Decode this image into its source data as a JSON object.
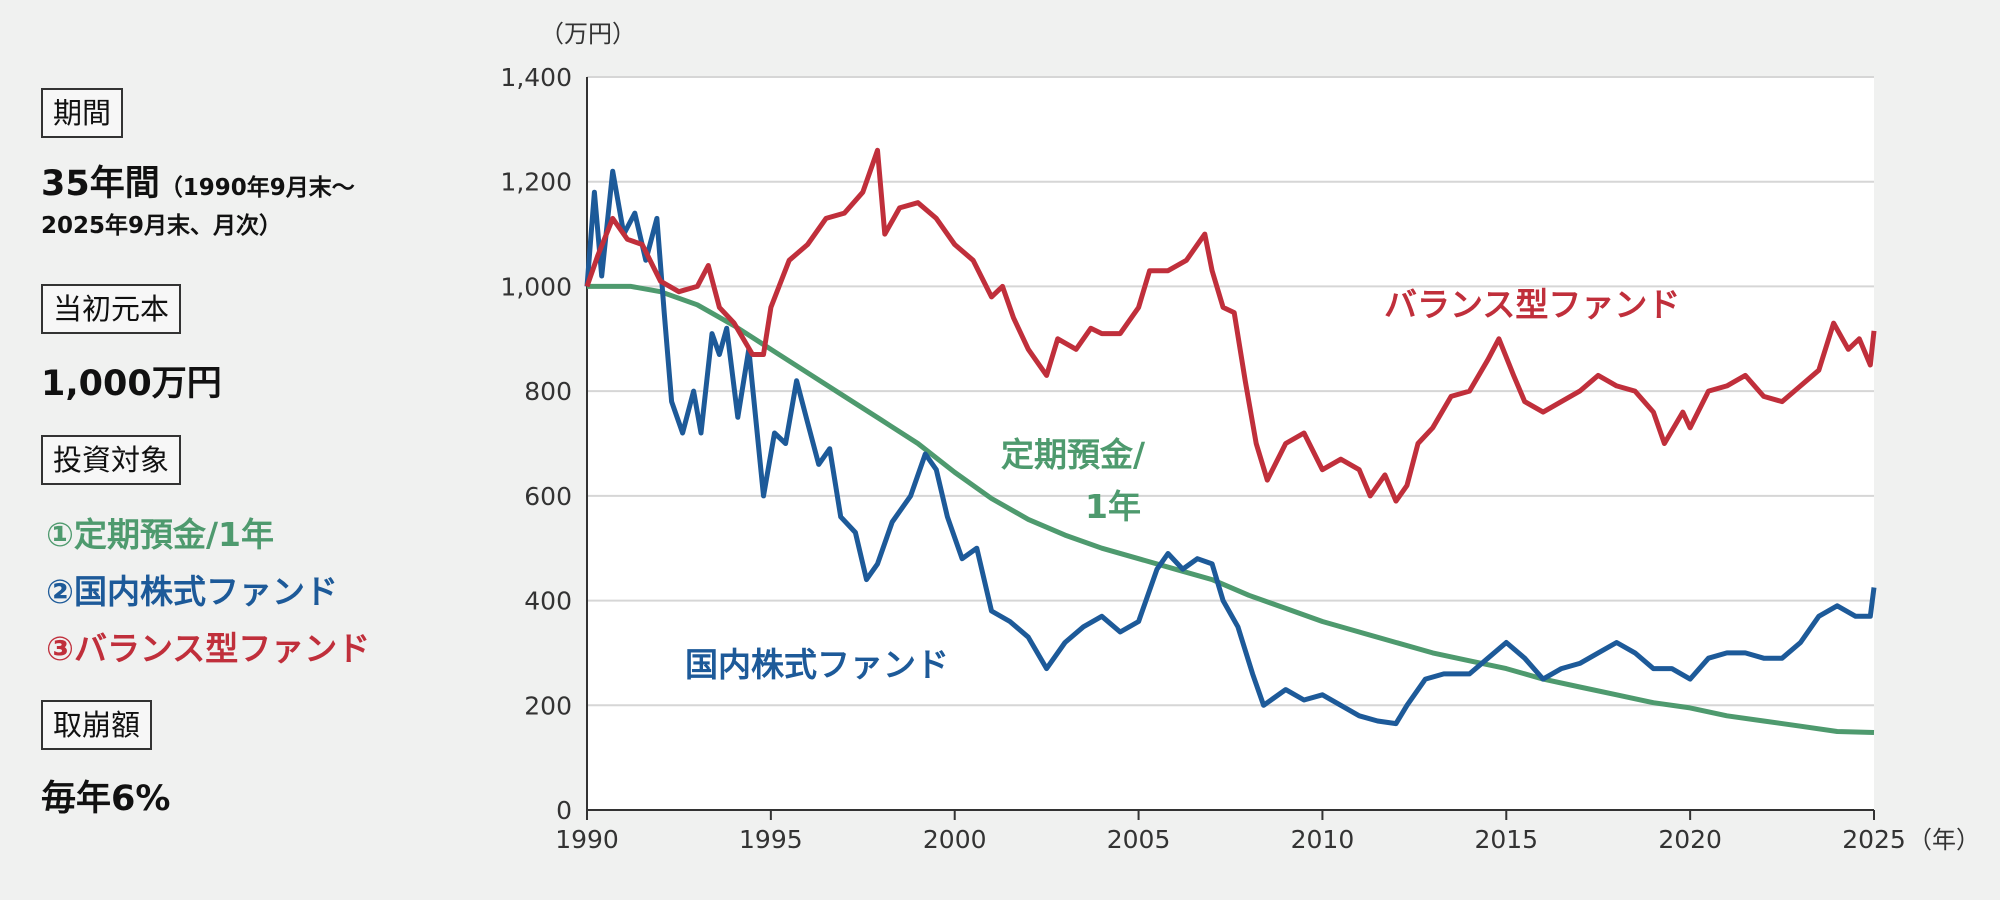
{
  "panel": {
    "period_label": "期間",
    "period_value": "35年間",
    "period_detail_1": "（1990年9月末〜",
    "period_detail_2": "2025年9月末、月次）",
    "principal_label": "当初元本",
    "principal_value": "1,000万円",
    "targets_label": "投資対象",
    "targets": [
      "①定期預金/1年",
      "②国内株式ファンド",
      "③バランス型ファンド"
    ],
    "withdrawal_label": "取崩額",
    "withdrawal_value": "毎年6%"
  },
  "colors": {
    "deposit": "#4e9a6e",
    "domestic": "#1d5a99",
    "balanced": "#c02f3b",
    "background": "#f0f1f0"
  },
  "chart_data": {
    "type": "line",
    "ylabel": "（万円）",
    "xlabel": "（年）",
    "ylim": [
      0,
      1400
    ],
    "xlim": [
      1990,
      2025
    ],
    "yticks": [
      "0",
      "200",
      "400",
      "600",
      "800",
      "1,000",
      "1,200",
      "1,400"
    ],
    "xticks": [
      "1990",
      "1995",
      "2000",
      "2005",
      "2010",
      "2015",
      "2020",
      "2025"
    ],
    "grid": true,
    "annotations": {
      "balanced": "バランス型ファンド",
      "deposit_1": "定期預金/",
      "deposit_2": "1年",
      "domestic": "国内株式ファンド"
    },
    "series": [
      {
        "name": "定期預金/1年",
        "color_key": "deposit",
        "x": [
          1990,
          1991.2,
          1992,
          1993,
          1994,
          1995,
          1996,
          1997,
          1998,
          1999,
          2000,
          2001,
          2002,
          2003,
          2004,
          2005,
          2006,
          2007,
          2008,
          2009,
          2010,
          2011,
          2012,
          2013,
          2014,
          2015,
          2016,
          2017,
          2018,
          2019,
          2020,
          2021,
          2022,
          2023,
          2024,
          2025
        ],
        "y": [
          1000,
          1000,
          990,
          965,
          925,
          880,
          835,
          790,
          745,
          700,
          645,
          595,
          555,
          525,
          500,
          480,
          460,
          440,
          410,
          385,
          360,
          340,
          320,
          300,
          285,
          270,
          250,
          235,
          220,
          205,
          195,
          180,
          170,
          160,
          150,
          148
        ]
      },
      {
        "name": "国内株式ファンド",
        "color_key": "domestic",
        "x": [
          1990,
          1990.2,
          1990.4,
          1990.7,
          1991,
          1991.3,
          1991.6,
          1991.9,
          1992.1,
          1992.3,
          1992.6,
          1992.9,
          1993.1,
          1993.4,
          1993.6,
          1993.8,
          1994.1,
          1994.4,
          1994.8,
          1995.1,
          1995.4,
          1995.7,
          1996,
          1996.3,
          1996.6,
          1996.9,
          1997.3,
          1997.6,
          1997.9,
          1998.3,
          1998.8,
          1999.2,
          1999.5,
          1999.8,
          2000.2,
          2000.6,
          2001,
          2001.5,
          2002,
          2002.5,
          2003,
          2003.5,
          2004,
          2004.5,
          2005,
          2005.5,
          2005.8,
          2006.2,
          2006.6,
          2007,
          2007.3,
          2007.7,
          2008.1,
          2008.4,
          2009,
          2009.5,
          2010,
          2010.5,
          2011,
          2011.5,
          2012,
          2012.3,
          2012.8,
          2013.3,
          2014,
          2014.5,
          2015,
          2015.5,
          2016,
          2016.5,
          2017,
          2017.5,
          2018,
          2018.5,
          2019,
          2019.5,
          2020,
          2020.5,
          2021,
          2021.5,
          2022,
          2022.5,
          2023,
          2023.5,
          2024,
          2024.5,
          2024.9,
          2025
        ],
        "y": [
          1000,
          1180,
          1020,
          1220,
          1100,
          1140,
          1050,
          1130,
          950,
          780,
          720,
          800,
          720,
          910,
          870,
          920,
          750,
          880,
          600,
          720,
          700,
          820,
          740,
          660,
          690,
          560,
          530,
          440,
          470,
          550,
          600,
          680,
          650,
          560,
          480,
          500,
          380,
          360,
          330,
          270,
          320,
          350,
          370,
          340,
          360,
          460,
          490,
          460,
          480,
          470,
          400,
          350,
          260,
          200,
          230,
          210,
          220,
          200,
          180,
          170,
          165,
          200,
          250,
          260,
          260,
          290,
          320,
          290,
          250,
          270,
          280,
          300,
          320,
          300,
          270,
          270,
          250,
          290,
          300,
          300,
          290,
          290,
          320,
          370,
          390,
          370,
          370,
          425
        ]
      },
      {
        "name": "バランス型ファンド",
        "color_key": "balanced",
        "x": [
          1990,
          1990.3,
          1990.7,
          1991.1,
          1991.5,
          1992,
          1992.5,
          1993,
          1993.3,
          1993.6,
          1994,
          1994.5,
          1994.8,
          1995,
          1995.5,
          1996,
          1996.5,
          1997,
          1997.5,
          1997.9,
          1998.1,
          1998.5,
          1999,
          1999.5,
          2000,
          2000.5,
          2001,
          2001.3,
          2001.6,
          2002,
          2002.5,
          2002.8,
          2003.3,
          2003.7,
          2004,
          2004.5,
          2005,
          2005.3,
          2005.8,
          2006.3,
          2006.8,
          2007,
          2007.3,
          2007.6,
          2007.9,
          2008.2,
          2008.5,
          2009,
          2009.5,
          2010,
          2010.5,
          2011,
          2011.3,
          2011.7,
          2012,
          2012.3,
          2012.6,
          2013,
          2013.5,
          2014,
          2014.5,
          2014.8,
          2015.2,
          2015.5,
          2016,
          2016.5,
          2017,
          2017.5,
          2018,
          2018.5,
          2019,
          2019.3,
          2019.8,
          2020,
          2020.5,
          2021,
          2021.5,
          2022,
          2022.5,
          2023,
          2023.5,
          2023.9,
          2024.3,
          2024.6,
          2024.9,
          2025
        ],
        "y": [
          1000,
          1060,
          1130,
          1090,
          1080,
          1010,
          990,
          1000,
          1040,
          960,
          930,
          870,
          870,
          960,
          1050,
          1080,
          1130,
          1140,
          1180,
          1260,
          1100,
          1150,
          1160,
          1130,
          1080,
          1050,
          980,
          1000,
          940,
          880,
          830,
          900,
          880,
          920,
          910,
          910,
          960,
          1030,
          1030,
          1050,
          1100,
          1030,
          960,
          950,
          820,
          700,
          630,
          700,
          720,
          650,
          670,
          650,
          600,
          640,
          590,
          620,
          700,
          730,
          790,
          800,
          860,
          900,
          830,
          780,
          760,
          780,
          800,
          830,
          810,
          800,
          760,
          700,
          760,
          730,
          800,
          810,
          830,
          790,
          780,
          810,
          840,
          930,
          880,
          900,
          850,
          915
        ]
      }
    ]
  }
}
